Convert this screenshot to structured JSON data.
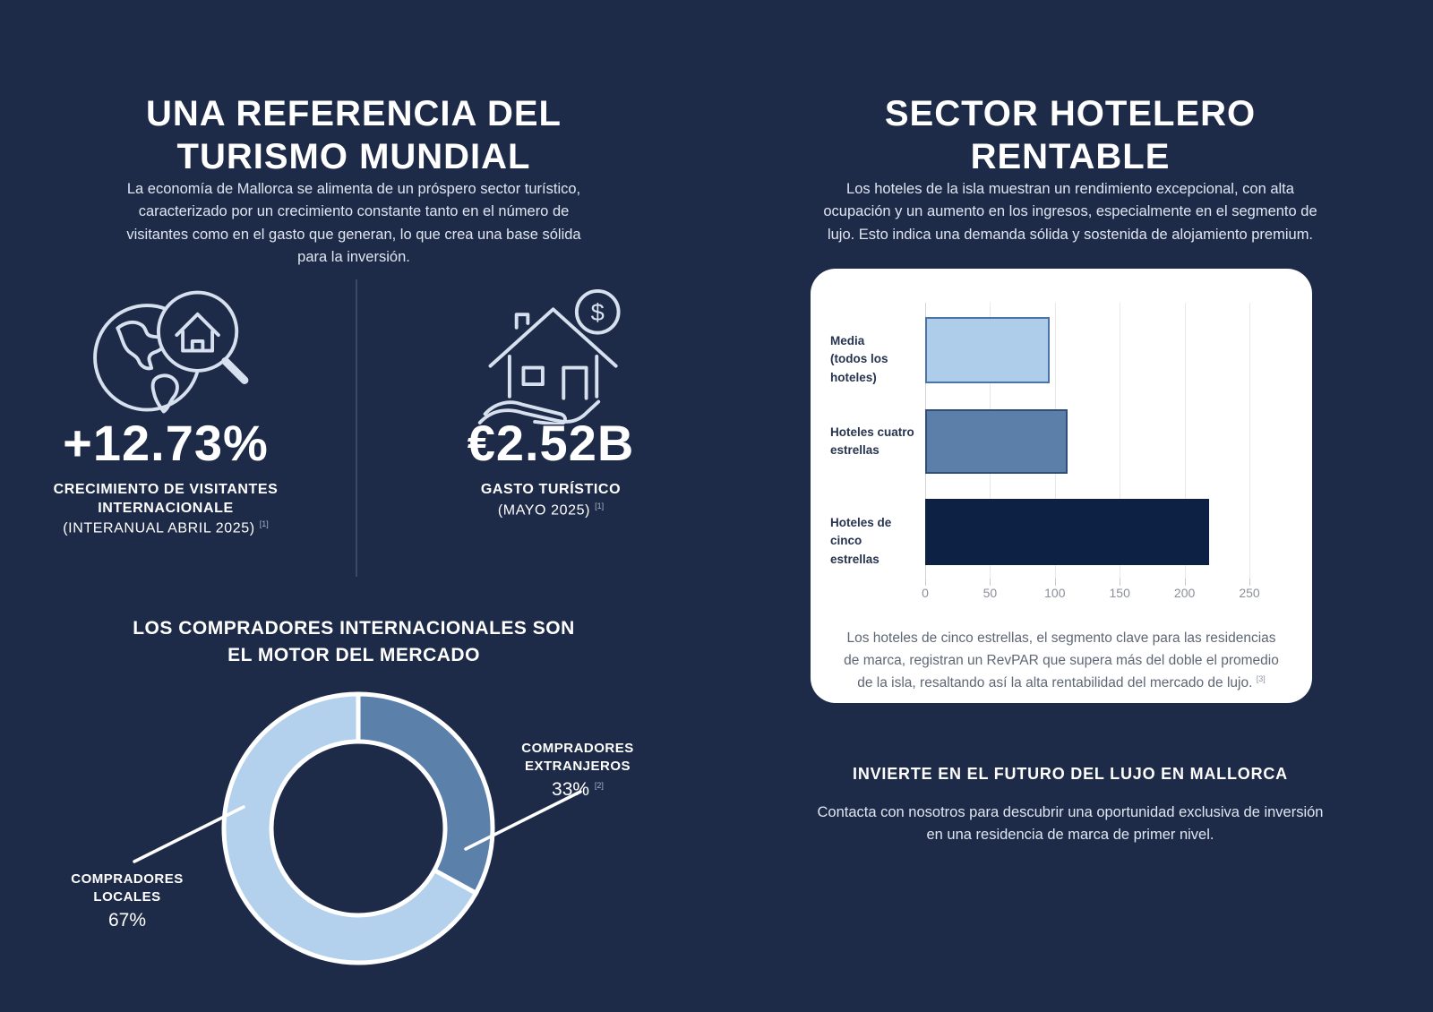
{
  "page": {
    "background": "#1e2b48",
    "accent_light_blue": "#b3d0ec",
    "accent_steel_blue": "#5b80aa",
    "accent_dark_navy": "#0d2144",
    "card_bg": "#ffffff"
  },
  "left": {
    "title_line1": "UNA REFERENCIA DEL",
    "title_line2": "TURISMO MUNDIAL",
    "intro": "La economía de Mallorca se alimenta de un próspero sector turístico, caracterizado por un crecimiento constante tanto en el número de visitantes como en el gasto que generan, lo que crea una base sólida para la inversión.",
    "stats": [
      {
        "icon": "globe-magnifier-house-icon",
        "value": "+12.73%",
        "label": "CRECIMIENTO DE VISITANTES INTERNACIONALE",
        "sublabel": "(INTERANUAL ABRIL 2025)",
        "footnote": "[1]"
      },
      {
        "icon": "house-hand-dollar-icon",
        "value": "€2.52B",
        "label": "GASTO TURÍSTICO",
        "sublabel": "(MAYO 2025)",
        "footnote": "[1]"
      }
    ],
    "donut_title_line1": "LOS COMPRADORES INTERNACIONALES SON",
    "donut_title_line2": "EL MOTOR DEL MERCADO"
  },
  "right": {
    "title_line1": "SECTOR HOTELERO",
    "title_line2": "RENTABLE",
    "intro": "Los hoteles de la isla muestran un rendimiento excepcional, con alta ocupación y un aumento en los ingresos, especialmente en el segmento de lujo. Esto indica una demanda sólida y sostenida de alojamiento premium.",
    "card_note": "Los hoteles de cinco estrellas, el segmento clave para las residencias de marca, registran un RevPAR que supera más del doble el promedio de la isla, resaltando así la alta rentabilidad del mercado de lujo.",
    "card_note_footnote": "[3]",
    "cta_title": "INVIERTE EN EL FUTURO DEL LUJO EN MALLORCA",
    "cta_text": "Contacta con nosotros para descubrir una oportunidad exclusiva de inversión en una residencia de marca de primer nivel."
  },
  "chart_data": [
    {
      "type": "pie",
      "subtype": "donut",
      "title": "LOS COMPRADORES INTERNACIONALES SON EL MOTOR DEL MERCADO",
      "labels": [
        "COMPRADORES EXTRANJEROS",
        "COMPRADORES LOCALES"
      ],
      "values": [
        33,
        67
      ],
      "slice_labels": [
        {
          "line1": "COMPRADORES",
          "line2": "EXTRANJEROS",
          "pct": "33%",
          "footnote": "[2]"
        },
        {
          "line1": "COMPRADORES",
          "line2": "LOCALES",
          "pct": "67%",
          "footnote": ""
        }
      ],
      "colors": [
        "#5b80aa",
        "#b3d0ec"
      ],
      "start_angle_deg": -90,
      "direction": "clockwise",
      "separator_color": "#ffffff",
      "legend_position": "callout-labels"
    },
    {
      "type": "bar",
      "orientation": "horizontal",
      "categories": [
        "Media (todos los hoteles)",
        "Hoteles cuatro estrellas",
        "Hoteles de cinco estrellas"
      ],
      "category_lines": [
        [
          "Media",
          "(todos los hoteles)"
        ],
        [
          "Hoteles cuatro",
          "estrellas"
        ],
        [
          "Hoteles de cinco",
          "estrellas"
        ]
      ],
      "values": [
        96,
        110,
        219
      ],
      "xlim": [
        0,
        250
      ],
      "xticks": [
        "0",
        "50",
        "100",
        "150",
        "200",
        "250"
      ],
      "colors": [
        "#aecdea",
        "#5b7fa8",
        "#0d2144"
      ],
      "border_colors": [
        "#4a74a4",
        "#2f4f7a",
        "#0d2144"
      ],
      "grid": true,
      "xlabel": "",
      "ylabel": ""
    }
  ]
}
